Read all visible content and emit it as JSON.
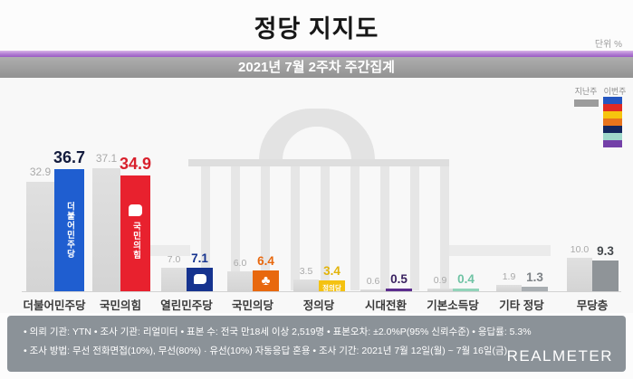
{
  "title": "정당 지지도",
  "unit_label": "단위 %",
  "subtitle": "2021년 7월 2주차 주간집계",
  "legend": {
    "last_week_label": "지난주",
    "this_week_label": "이번주",
    "last_week_color": "#9c9c9c",
    "this_week_colors": [
      "#2456c0",
      "#e02a23",
      "#f6c40e",
      "#e8741c",
      "#14265e",
      "#9fd8cb",
      "#7440a8"
    ]
  },
  "chart_data": {
    "type": "bar",
    "title": "정당 지지도",
    "subtitle": "2021년 7월 2주차 주간집계",
    "unit": "%",
    "categories": [
      "더불어민주당",
      "국민의힘",
      "열린민주당",
      "국민의당",
      "정의당",
      "시대전환",
      "기본소득당",
      "기타 정당",
      "무당층"
    ],
    "series": [
      {
        "name": "지난주",
        "values": [
          32.9,
          37.1,
          7.0,
          6.0,
          3.5,
          0.6,
          0.9,
          1.9,
          10.0
        ]
      },
      {
        "name": "이번주",
        "values": [
          36.7,
          34.9,
          7.1,
          6.4,
          3.4,
          0.5,
          0.4,
          1.3,
          9.3
        ]
      }
    ],
    "prev_bar_color": "#d8d8d8",
    "prev_value_color": "#a9a9a9",
    "bar_colors": [
      "#1f5ed0",
      "#e8212e",
      "#16338f",
      "#e8680e",
      "#f4c211",
      "#5c2e8e",
      "#92d3b9",
      "#a9aeb2",
      "#8f9498"
    ],
    "value_colors": [
      "#131b3d",
      "#d8202c",
      "#16338f",
      "#e8680e",
      "#e2b40a",
      "#3a2260",
      "#6fc3a4",
      "#7d8286",
      "#45494d"
    ],
    "bar_overlays": [
      {
        "kind": "vtext",
        "text": "더불어민주당"
      },
      {
        "kind": "icon-vtext",
        "icon": "speech-bubble-logo",
        "text": "국민의힘"
      },
      {
        "kind": "icon",
        "icon": "open-democratic-party-logo"
      },
      {
        "kind": "glyph",
        "icon": "clover-logo",
        "glyph": "♣"
      },
      {
        "kind": "text",
        "text": "정의당"
      },
      null,
      null,
      null,
      null
    ],
    "ylim": [
      0,
      40
    ],
    "grid": false,
    "legend_position": "top-right",
    "watermark_icon": "national-assembly-building"
  },
  "footer": {
    "line1": "• 의뢰 기관: YTN  • 조사 기관: 리얼미터  • 표본 수: 전국 만18세 이상 2,519명  • 표본오차: ±2.0%P(95% 신뢰수준)  • 응답률: 5.3%",
    "line2": "• 조사 방법: 무선 전화면접(10%), 무선(80%) · 유선(10%) 자동응답 혼용  • 조사 기간: 2021년 7월 12일(월) ~ 7월 16일(금)",
    "brand": "REALMETER"
  }
}
